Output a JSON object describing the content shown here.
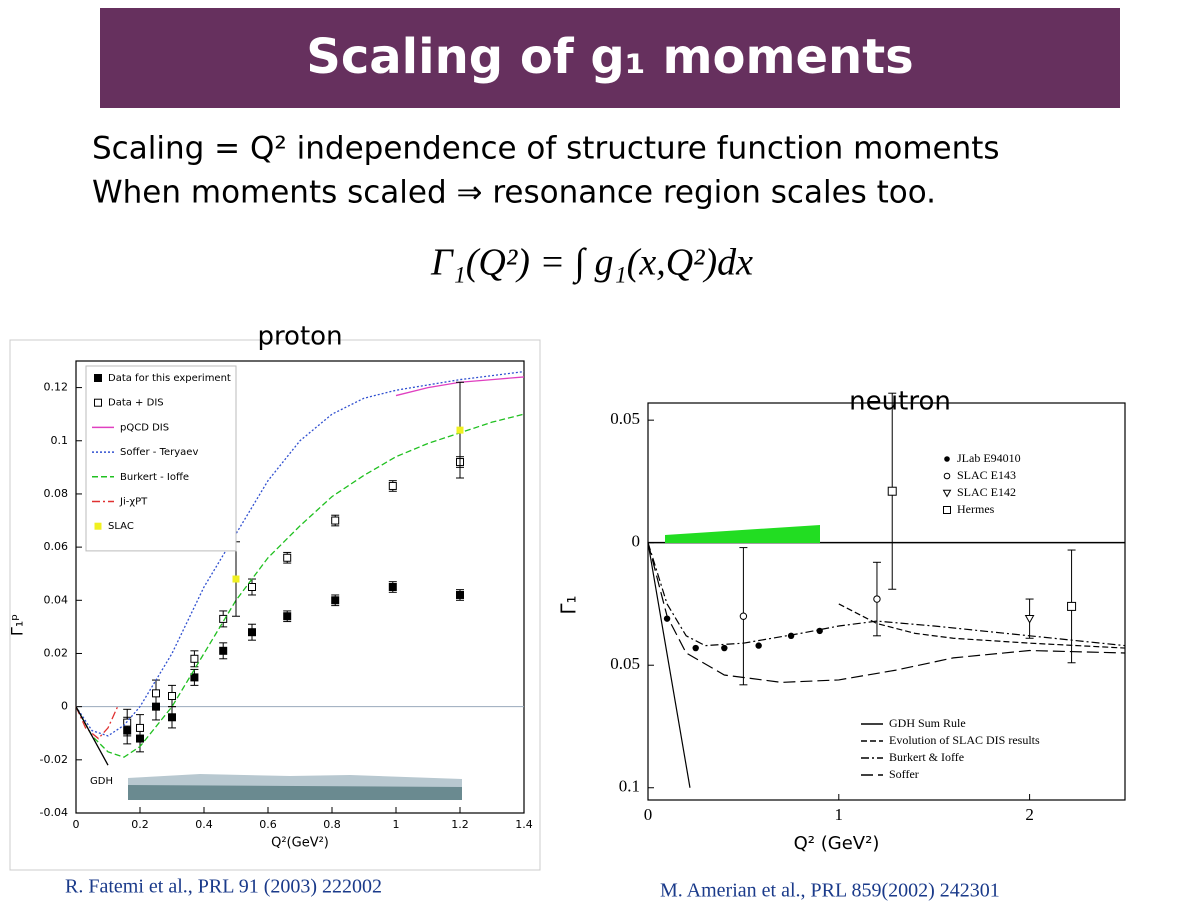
{
  "title": "Scaling of g₁ moments",
  "text_lines": [
    "Scaling = Q² independence of structure function moments",
    "When moments scaled  ⇒ resonance region scales too."
  ],
  "formula": "Γ₁(Q²) = ∫ g₁(x,Q²)dx",
  "captions": [
    "R. Fatemi et al., PRL 91 (2003) 222002",
    "M. Amerian et al., PRL 859(2002) 242301"
  ],
  "chart_data": [
    {
      "type": "scatter",
      "title": "proton",
      "xlabel": "Q²(GeV²)",
      "ylabel": "Γ₁ᵖ",
      "xlim": [
        0,
        1.4
      ],
      "ylim": [
        -0.04,
        0.13
      ],
      "xticks": [
        0,
        0.2,
        0.4,
        0.6,
        0.8,
        1,
        1.2,
        1.4
      ],
      "yticks": [
        -0.04,
        -0.02,
        0,
        0.02,
        0.04,
        0.06,
        0.08,
        0.1,
        0.12
      ],
      "zero_line": true,
      "legend": "upper left",
      "annotations": [
        "GDH"
      ],
      "series": [
        {
          "name": "Data for this experiment",
          "color": "#000000",
          "mode": "markers",
          "marker": "square",
          "x": [
            0.16,
            0.2,
            0.25,
            0.3,
            0.37,
            0.46,
            0.55,
            0.66,
            0.81,
            0.99,
            1.2
          ],
          "values": [
            -0.009,
            -0.012,
            0,
            -0.004,
            0.011,
            0.021,
            0.028,
            0.034,
            0.04,
            0.045,
            0.042
          ],
          "errors": [
            0.005,
            0.005,
            0.005,
            0.004,
            0.003,
            0.003,
            0.003,
            0.002,
            0.002,
            0.002,
            0.002
          ]
        },
        {
          "name": "Data + DIS",
          "color": "#000000",
          "mode": "markers",
          "marker": "open-square",
          "x": [
            0.16,
            0.2,
            0.25,
            0.3,
            0.37,
            0.46,
            0.55,
            0.66,
            0.81,
            0.99,
            1.2
          ],
          "values": [
            -0.006,
            -0.008,
            0.005,
            0.004,
            0.018,
            0.033,
            0.045,
            0.056,
            0.07,
            0.083,
            0.092
          ],
          "errors": [
            0.005,
            0.005,
            0.005,
            0.004,
            0.003,
            0.003,
            0.003,
            0.002,
            0.002,
            0.002,
            0.002
          ]
        },
        {
          "name": "pQCD DIS",
          "color": "#e040c0",
          "mode": "line",
          "dash": "solid",
          "x": [
            1,
            1.1,
            1.2,
            1.3,
            1.4
          ],
          "values": [
            0.117,
            0.12,
            0.122,
            0.123,
            0.124
          ]
        },
        {
          "name": "Soffer - Teryaev",
          "color": "#3050d0",
          "mode": "line",
          "dash": "dotted",
          "x": [
            0,
            0.05,
            0.1,
            0.15,
            0.2,
            0.3,
            0.4,
            0.5,
            0.6,
            0.7,
            0.8,
            0.9,
            1,
            1.2,
            1.4
          ],
          "values": [
            0,
            -0.009,
            -0.011,
            -0.007,
            0,
            0.02,
            0.045,
            0.065,
            0.085,
            0.1,
            0.11,
            0.116,
            0.119,
            0.123,
            0.126
          ]
        },
        {
          "name": "Burkert - Ioffe",
          "color": "#20c020",
          "mode": "line",
          "dash": "dashed",
          "x": [
            0,
            0.05,
            0.1,
            0.15,
            0.2,
            0.3,
            0.4,
            0.5,
            0.6,
            0.7,
            0.8,
            0.9,
            1,
            1.1,
            1.2,
            1.3,
            1.4
          ],
          "values": [
            0,
            -0.011,
            -0.017,
            -0.019,
            -0.015,
            0,
            0.02,
            0.04,
            0.056,
            0.068,
            0.079,
            0.087,
            0.094,
            0.099,
            0.103,
            0.107,
            0.11
          ]
        },
        {
          "name": "Ji-χPT",
          "color": "#e03030",
          "mode": "line",
          "dash": "dash-dot",
          "x": [
            0,
            0.03,
            0.07,
            0.1,
            0.13
          ],
          "values": [
            0,
            -0.008,
            -0.012,
            -0.008,
            0
          ]
        },
        {
          "color": "#000000",
          "mode": "line",
          "dash": "solid",
          "x": [
            0,
            0.1
          ],
          "values": [
            0,
            -0.022
          ]
        },
        {
          "name": "SLAC",
          "color": "#f0f020",
          "mode": "markers",
          "marker": "square",
          "x": [
            0.5,
            1.2
          ],
          "values": [
            0.048,
            0.104
          ],
          "errors": [
            0.014,
            0.018
          ]
        }
      ]
    },
    {
      "type": "scatter",
      "title": "neutron",
      "xlabel": "Q² (GeV²)",
      "ylabel": "Γ₁",
      "xlim": [
        0,
        2.5
      ],
      "ylim": [
        -0.105,
        0.057
      ],
      "xticks": [
        0,
        1,
        2
      ],
      "yticks": [
        {
          "value": -0.1,
          "label": "0.1"
        },
        {
          "value": -0.05,
          "label": "0.05"
        },
        0,
        0.05
      ],
      "zero_line": true,
      "legend": [
        "upper right",
        "lower left"
      ],
      "series": [
        {
          "name": "JLab E94010",
          "color": "#000000",
          "mode": "markers",
          "marker": "circle",
          "x": [
            0.1,
            0.25,
            0.4,
            0.58,
            0.75,
            0.9
          ],
          "values": [
            -0.031,
            -0.043,
            -0.043,
            -0.042,
            -0.038,
            -0.036
          ]
        },
        {
          "name": "SLAC E143",
          "color": "#000000",
          "mode": "markers",
          "marker": "open-circle",
          "x": [
            0.5,
            1.2
          ],
          "values": [
            -0.03,
            -0.023
          ],
          "errors": [
            0.028,
            0.015
          ]
        },
        {
          "name": "SLAC E142",
          "color": "#000000",
          "mode": "markers",
          "marker": "open-triangle",
          "x": [
            2
          ],
          "values": [
            -0.031
          ],
          "errors": [
            0.008
          ]
        },
        {
          "name": "Hermes",
          "color": "#000000",
          "mode": "markers",
          "marker": "open-square",
          "x": [
            1.28,
            2.22
          ],
          "values": [
            0.021,
            -0.026
          ],
          "errors": [
            0.04,
            0.023
          ]
        },
        {
          "name": "GDH Sum Rule",
          "color": "#000000",
          "mode": "line",
          "dash": "solid",
          "x": [
            0,
            0.22
          ],
          "values": [
            0,
            -0.1
          ]
        },
        {
          "name": "Evolution of SLAC DIS results",
          "color": "#000000",
          "mode": "line",
          "dash": "dashed",
          "x": [
            1,
            1.2,
            1.4,
            1.6,
            2,
            2.5
          ],
          "values": [
            -0.025,
            -0.033,
            -0.037,
            -0.039,
            -0.041,
            -0.043
          ]
        },
        {
          "name": "Burkert & Ioffe",
          "color": "#000000",
          "mode": "line",
          "dash": "dash-dot",
          "x": [
            0,
            0.1,
            0.2,
            0.3,
            0.5,
            0.8,
            1,
            1.2,
            1.5,
            2,
            2.5
          ],
          "values": [
            0,
            -0.025,
            -0.038,
            -0.042,
            -0.041,
            -0.037,
            -0.034,
            -0.032,
            -0.034,
            -0.038,
            -0.042
          ]
        },
        {
          "name": "Soffer",
          "color": "#000000",
          "mode": "line",
          "dash": "long-dash",
          "x": [
            0,
            0.1,
            0.2,
            0.4,
            0.7,
            1,
            1.3,
            1.6,
            2,
            2.5
          ],
          "values": [
            0,
            -0.03,
            -0.045,
            -0.054,
            -0.057,
            -0.056,
            -0.052,
            -0.047,
            -0.044,
            -0.045
          ]
        }
      ]
    }
  ]
}
